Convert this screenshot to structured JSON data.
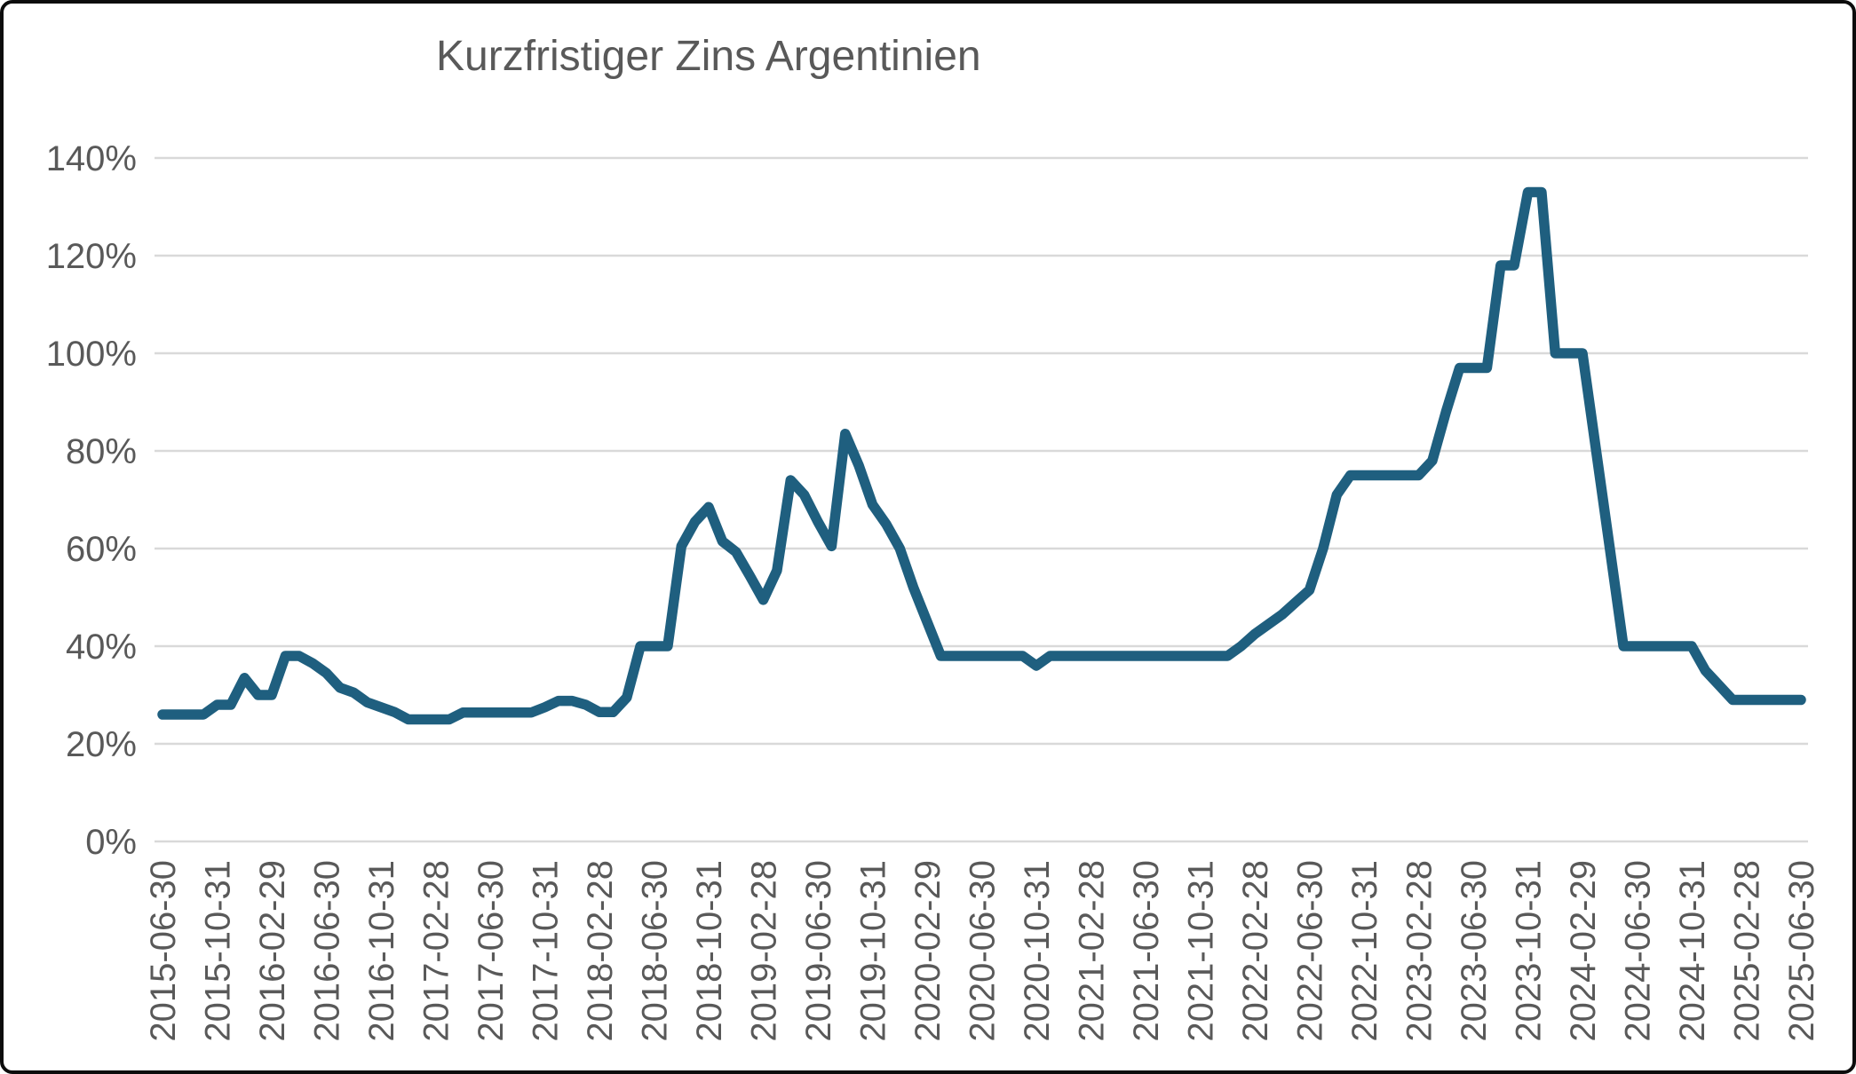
{
  "title": "Kurzfristiger Zins Argentinien",
  "colors": {
    "line": "#1F5F7F",
    "gridline": "#D9D9D9",
    "tick_text": "#595959",
    "title_text": "#595959",
    "background": "#FFFFFF",
    "border": "#0C0C0C"
  },
  "chart_data": {
    "type": "line",
    "title": "Kurzfristiger Zins Argentinien",
    "xlabel": "",
    "ylabel": "",
    "ylim": [
      0,
      140
    ],
    "y_unit": "%",
    "grid": "horizontal",
    "legend": "none",
    "line_color": "#1F5F7F",
    "y_tick_labels": [
      "0%",
      "20%",
      "40%",
      "60%",
      "80%",
      "100%",
      "120%",
      "140%"
    ],
    "x_tick_labels": [
      "2015-06-30",
      "2015-10-31",
      "2016-02-29",
      "2016-06-30",
      "2016-10-31",
      "2017-02-28",
      "2017-06-30",
      "2017-10-31",
      "2018-02-28",
      "2018-06-30",
      "2018-10-31",
      "2019-02-28",
      "2019-06-30",
      "2019-10-31",
      "2020-02-29",
      "2020-06-30",
      "2020-10-31",
      "2021-02-28",
      "2021-06-30",
      "2021-10-31",
      "2022-02-28",
      "2022-06-30",
      "2022-10-31",
      "2023-02-28",
      "2023-06-30",
      "2023-10-31",
      "2024-02-29",
      "2024-06-30",
      "2024-10-31",
      "2025-02-28",
      "2025-06-30"
    ],
    "x": [
      "2015-06-30",
      "2015-07-31",
      "2015-08-31",
      "2015-09-30",
      "2015-10-31",
      "2015-11-30",
      "2015-12-31",
      "2016-01-31",
      "2016-02-29",
      "2016-03-31",
      "2016-04-30",
      "2016-05-31",
      "2016-06-30",
      "2016-07-31",
      "2016-08-31",
      "2016-09-30",
      "2016-10-31",
      "2016-11-30",
      "2016-12-31",
      "2017-01-31",
      "2017-02-28",
      "2017-03-31",
      "2017-04-30",
      "2017-05-31",
      "2017-06-30",
      "2017-07-31",
      "2017-08-31",
      "2017-09-30",
      "2017-10-31",
      "2017-11-30",
      "2017-12-31",
      "2018-01-31",
      "2018-02-28",
      "2018-03-31",
      "2018-04-30",
      "2018-05-31",
      "2018-06-30",
      "2018-07-31",
      "2018-08-31",
      "2018-09-30",
      "2018-10-31",
      "2018-11-30",
      "2018-12-31",
      "2019-01-31",
      "2019-02-28",
      "2019-03-31",
      "2019-04-30",
      "2019-05-31",
      "2019-06-30",
      "2019-07-31",
      "2019-08-31",
      "2019-09-30",
      "2019-10-31",
      "2019-11-30",
      "2019-12-31",
      "2020-01-31",
      "2020-02-29",
      "2020-03-31",
      "2020-04-30",
      "2020-05-31",
      "2020-06-30",
      "2020-07-31",
      "2020-08-31",
      "2020-09-30",
      "2020-10-31",
      "2020-11-30",
      "2020-12-31",
      "2021-01-31",
      "2021-02-28",
      "2021-03-31",
      "2021-04-30",
      "2021-05-31",
      "2021-06-30",
      "2021-07-31",
      "2021-08-31",
      "2021-09-30",
      "2021-10-31",
      "2021-11-30",
      "2021-12-31",
      "2022-01-31",
      "2022-02-28",
      "2022-03-31",
      "2022-04-30",
      "2022-05-31",
      "2022-06-30",
      "2022-07-31",
      "2022-08-31",
      "2022-09-30",
      "2022-10-31",
      "2022-11-30",
      "2022-12-31",
      "2023-01-31",
      "2023-02-28",
      "2023-03-31",
      "2023-04-30",
      "2023-05-31",
      "2023-06-30",
      "2023-07-31",
      "2023-08-31",
      "2023-09-30",
      "2023-10-31",
      "2023-11-30",
      "2023-12-31",
      "2024-01-31",
      "2024-02-29",
      "2024-03-31",
      "2024-04-30",
      "2024-05-31",
      "2024-06-30",
      "2024-07-31",
      "2024-08-31",
      "2024-09-30",
      "2024-10-31",
      "2024-11-30",
      "2024-12-31",
      "2025-01-31",
      "2025-02-28",
      "2025-03-31",
      "2025-04-30",
      "2025-05-31",
      "2025-06-30"
    ],
    "values": [
      26,
      26,
      26,
      26,
      28,
      28,
      33.5,
      30,
      30,
      38,
      38,
      36.5,
      34.5,
      31.5,
      30.5,
      28.5,
      27.5,
      26.5,
      25,
      25,
      25,
      25,
      26.4,
      26.4,
      26.4,
      26.4,
      26.4,
      26.4,
      27.5,
      28.8,
      28.8,
      28,
      26.5,
      26.5,
      29.5,
      40,
      40,
      40,
      60.5,
      65.5,
      68.5,
      61.5,
      59.3,
      54.5,
      49.5,
      55.5,
      74,
      71,
      65.5,
      60.5,
      83.5,
      77,
      69,
      65,
      60,
      52,
      45,
      38,
      38,
      38,
      38,
      38,
      38,
      38,
      36,
      38,
      38,
      38,
      38,
      38,
      38,
      38,
      38,
      38,
      38,
      38,
      38,
      38,
      38,
      40,
      42.5,
      44.5,
      46.5,
      49,
      51.5,
      60,
      71,
      75,
      75,
      75,
      75,
      75,
      75,
      78,
      88,
      97,
      97,
      97,
      118,
      118,
      133,
      133,
      100,
      100,
      100,
      80,
      60,
      40,
      40,
      40,
      40,
      40,
      40,
      35,
      32,
      29,
      29,
      29,
      29,
      29,
      29
    ]
  }
}
